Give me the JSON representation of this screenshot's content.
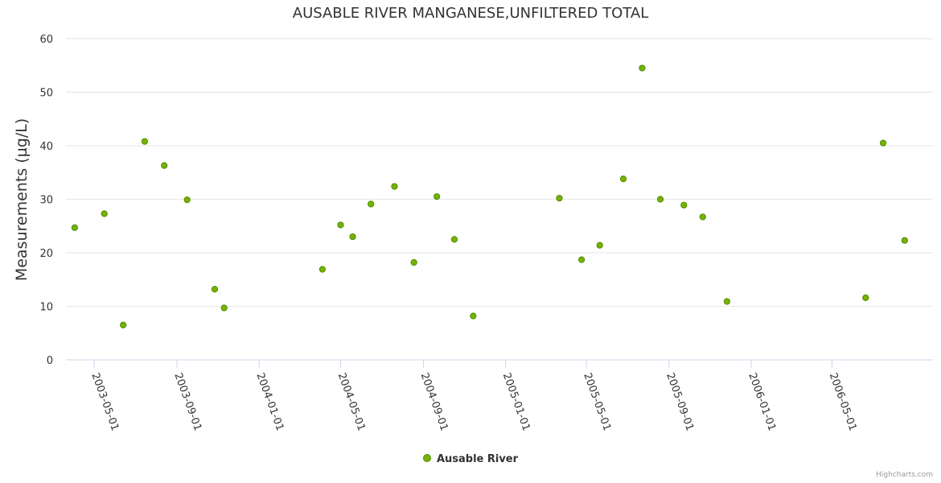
{
  "chart_data": {
    "type": "scatter",
    "title": "AUSABLE RIVER MANGANESE,UNFILTERED TOTAL",
    "xlabel": "",
    "ylabel": "Measurements (µg/L)",
    "ylim": [
      0,
      60
    ],
    "yticks": [
      0,
      10,
      20,
      30,
      40,
      50,
      60
    ],
    "xlim": [
      "2003-03-20",
      "2006-09-28"
    ],
    "xticks": [
      "2003-05-01",
      "2003-09-01",
      "2004-01-01",
      "2004-05-01",
      "2004-09-01",
      "2005-01-01",
      "2005-05-01",
      "2005-09-01",
      "2006-01-01",
      "2006-05-01"
    ],
    "grid": true,
    "legend_position": "bottom-center",
    "series": [
      {
        "name": "Ausable River",
        "color": "#77b300",
        "points": [
          {
            "x": "2003-04-02",
            "y": 24.7
          },
          {
            "x": "2003-05-16",
            "y": 27.3
          },
          {
            "x": "2003-06-13",
            "y": 6.5
          },
          {
            "x": "2003-07-15",
            "y": 40.8
          },
          {
            "x": "2003-08-13",
            "y": 36.3
          },
          {
            "x": "2003-09-16",
            "y": 29.9
          },
          {
            "x": "2003-10-27",
            "y": 13.2
          },
          {
            "x": "2003-11-10",
            "y": 9.7
          },
          {
            "x": "2004-04-04",
            "y": 16.9
          },
          {
            "x": "2004-05-01",
            "y": 25.2
          },
          {
            "x": "2004-05-19",
            "y": 23.0
          },
          {
            "x": "2004-06-15",
            "y": 29.1
          },
          {
            "x": "2004-07-20",
            "y": 32.4
          },
          {
            "x": "2004-08-18",
            "y": 18.2
          },
          {
            "x": "2004-09-21",
            "y": 30.5
          },
          {
            "x": "2004-10-17",
            "y": 22.5
          },
          {
            "x": "2004-11-14",
            "y": 8.2
          },
          {
            "x": "2005-03-22",
            "y": 30.2
          },
          {
            "x": "2005-04-24",
            "y": 18.7
          },
          {
            "x": "2005-05-21",
            "y": 21.4
          },
          {
            "x": "2005-06-25",
            "y": 33.8
          },
          {
            "x": "2005-07-23",
            "y": 54.5
          },
          {
            "x": "2005-08-19",
            "y": 30.0
          },
          {
            "x": "2005-09-23",
            "y": 28.9
          },
          {
            "x": "2005-10-21",
            "y": 26.7
          },
          {
            "x": "2005-11-26",
            "y": 10.9
          },
          {
            "x": "2006-06-20",
            "y": 11.6
          },
          {
            "x": "2006-07-16",
            "y": 40.5
          },
          {
            "x": "2006-08-17",
            "y": 22.3
          }
        ]
      }
    ]
  },
  "legend": {
    "label": "Ausable River",
    "marker_color": "#77b300"
  },
  "credits": "Highcharts.com"
}
